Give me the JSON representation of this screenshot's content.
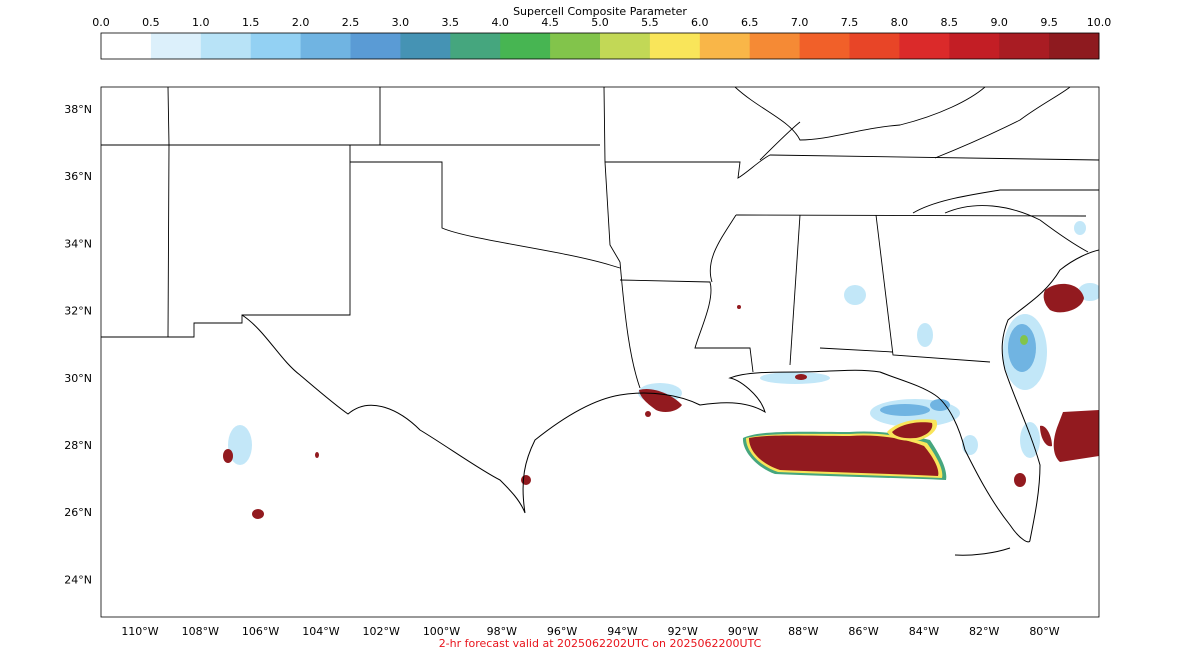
{
  "colorbar": {
    "title": "Supercell Composite Parameter",
    "tick_labels": [
      "0.0",
      "0.5",
      "1.0",
      "1.5",
      "2.0",
      "2.5",
      "3.0",
      "3.5",
      "4.0",
      "4.5",
      "5.0",
      "5.5",
      "6.0",
      "6.5",
      "7.0",
      "7.5",
      "8.0",
      "8.5",
      "9.0",
      "9.5",
      "10.0"
    ],
    "colors": [
      "#ffffff",
      "#dcf0fb",
      "#b8e3f7",
      "#93d1f3",
      "#70b4e2",
      "#5a9bd5",
      "#4593b4",
      "#45a67e",
      "#47b552",
      "#82c44b",
      "#c2d856",
      "#f9e55a",
      "#f9b648",
      "#f58a35",
      "#f16029",
      "#e84527",
      "#db2a2a",
      "#c31e25",
      "#a91c23",
      "#8e1a1f"
    ]
  },
  "map": {
    "lat_labels": [
      "38°N",
      "36°N",
      "34°N",
      "32°N",
      "30°N",
      "28°N",
      "26°N",
      "24°N"
    ],
    "lon_labels": [
      "110°W",
      "108°W",
      "106°W",
      "104°W",
      "102°W",
      "100°W",
      "98°W",
      "96°W",
      "94°W",
      "92°W",
      "90°W",
      "88°W",
      "86°W",
      "84°W",
      "82°W",
      "80°W"
    ],
    "highlight_color": "#921a1f"
  },
  "caption": "2-hr forecast valid at 2025062202UTC on 2025062200UTC"
}
